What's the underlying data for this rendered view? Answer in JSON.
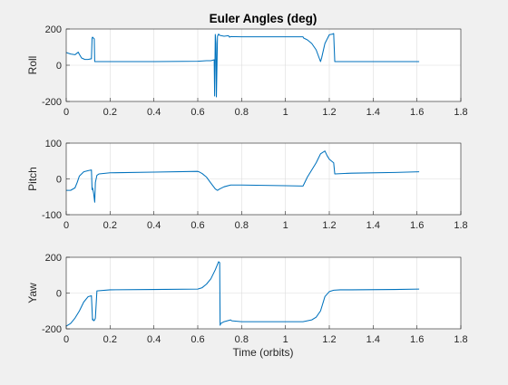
{
  "figure": {
    "title": "Euler Angles (deg)",
    "xlabel": "Time (orbits)"
  },
  "colors": {
    "figure_background": "#f0f0f0",
    "axes_background": "#ffffff",
    "line": "#0072bd"
  },
  "chart_data": [
    {
      "type": "line",
      "title": "Euler Angles (deg)",
      "xlabel": "",
      "ylabel": "Roll",
      "xlim": [
        0,
        1.8
      ],
      "ylim": [
        -200,
        200
      ],
      "xticks": [
        "0",
        "0.2",
        "0.4",
        "0.6",
        "0.8",
        "1",
        "1.2",
        "1.4",
        "1.6",
        "1.8"
      ],
      "yticks": [
        "-200",
        "0",
        "200"
      ],
      "grid": true,
      "series": [
        {
          "x": [
            0,
            0.02,
            0.04,
            0.055,
            0.06,
            0.07,
            0.085,
            0.1,
            0.115,
            0.118,
            0.12,
            0.124,
            0.128,
            0.13,
            0.135,
            0.2,
            0.4,
            0.6,
            0.64,
            0.66,
            0.675,
            0.677,
            0.68,
            0.683,
            0.685,
            0.69,
            0.695,
            0.7,
            0.72,
            0.74,
            0.745,
            0.75,
            0.8,
            1.0,
            1.08,
            1.083,
            1.1,
            1.12,
            1.14,
            1.16,
            1.165,
            1.18,
            1.2,
            1.215,
            1.22,
            1.225,
            1.3,
            1.5,
            1.61
          ],
          "values": [
            70,
            62,
            58,
            72,
            60,
            40,
            32,
            32,
            36,
            150,
            155,
            150,
            145,
            20,
            20,
            20,
            20,
            22,
            25,
            25,
            30,
            -170,
            170,
            120,
            -175,
            160,
            172,
            165,
            160,
            163,
            155,
            158,
            157,
            157,
            157,
            150,
            140,
            120,
            85,
            20,
            40,
            120,
            168,
            172,
            175,
            20,
            20,
            20,
            20
          ]
        }
      ]
    },
    {
      "type": "line",
      "title": "",
      "xlabel": "",
      "ylabel": "Pitch",
      "xlim": [
        0,
        1.8
      ],
      "ylim": [
        -100,
        100
      ],
      "xticks": [
        "0",
        "0.2",
        "0.4",
        "0.6",
        "0.8",
        "1",
        "1.2",
        "1.4",
        "1.6",
        "1.8"
      ],
      "yticks": [
        "-100",
        "0",
        "100"
      ],
      "grid": true,
      "series": [
        {
          "x": [
            0,
            0.02,
            0.04,
            0.05,
            0.06,
            0.08,
            0.1,
            0.115,
            0.118,
            0.12,
            0.125,
            0.13,
            0.133,
            0.14,
            0.15,
            0.2,
            0.4,
            0.6,
            0.605,
            0.62,
            0.64,
            0.66,
            0.68,
            0.69,
            0.7,
            0.72,
            0.75,
            0.8,
            1.0,
            1.08,
            1.085,
            1.1,
            1.12,
            1.14,
            1.16,
            1.18,
            1.19,
            1.2,
            1.22,
            1.225,
            1.3,
            1.5,
            1.61
          ],
          "values": [
            -32,
            -32,
            -25,
            -10,
            8,
            20,
            23,
            25,
            -30,
            -25,
            -40,
            -65,
            -10,
            10,
            14,
            17,
            19,
            21,
            20,
            15,
            5,
            -12,
            -28,
            -32,
            -28,
            -22,
            -17,
            -17,
            -19,
            -20,
            -14,
            5,
            25,
            45,
            70,
            78,
            65,
            55,
            45,
            14,
            16,
            18,
            20
          ]
        }
      ]
    },
    {
      "type": "line",
      "title": "",
      "xlabel": "Time (orbits)",
      "ylabel": "Yaw",
      "xlim": [
        0,
        1.8
      ],
      "ylim": [
        -200,
        200
      ],
      "xticks": [
        "0",
        "0.2",
        "0.4",
        "0.6",
        "0.8",
        "1",
        "1.2",
        "1.4",
        "1.6",
        "1.8"
      ],
      "yticks": [
        "-200",
        "0",
        "200"
      ],
      "grid": true,
      "series": [
        {
          "x": [
            0,
            0.02,
            0.04,
            0.06,
            0.08,
            0.1,
            0.115,
            0.12,
            0.122,
            0.125,
            0.13,
            0.133,
            0.14,
            0.2,
            0.4,
            0.6,
            0.62,
            0.64,
            0.66,
            0.68,
            0.695,
            0.7,
            0.702,
            0.705,
            0.72,
            0.75,
            0.755,
            0.8,
            1.0,
            1.08,
            1.1,
            1.12,
            1.14,
            1.16,
            1.17,
            1.18,
            1.2,
            1.22,
            1.25,
            1.3,
            1.5,
            1.61
          ],
          "values": [
            -185,
            -170,
            -140,
            -100,
            -50,
            -20,
            -15,
            -150,
            -145,
            -155,
            -150,
            -140,
            12,
            18,
            20,
            22,
            30,
            50,
            80,
            130,
            175,
            170,
            -180,
            -170,
            -160,
            -150,
            -155,
            -160,
            -160,
            -160,
            -155,
            -150,
            -135,
            -100,
            -60,
            -20,
            8,
            16,
            18,
            18,
            20,
            22
          ]
        }
      ]
    }
  ]
}
